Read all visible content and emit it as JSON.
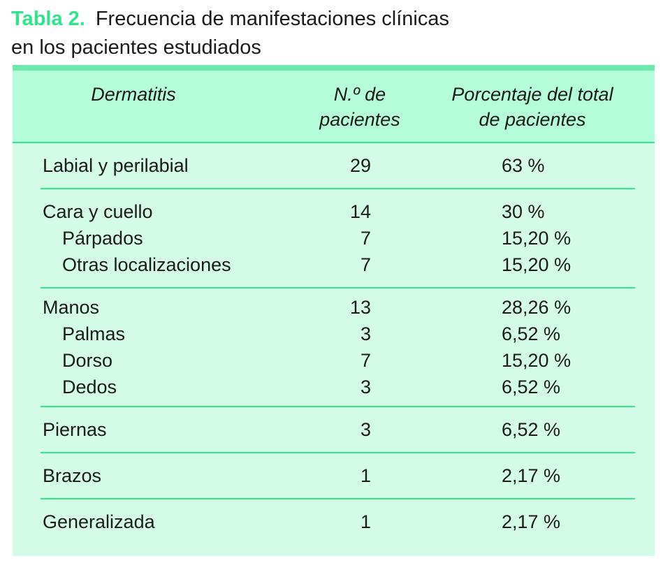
{
  "caption": {
    "label": "Tabla 2.",
    "line1": "Frecuencia de manifestaciones clínicas",
    "line2": "en los pacientes estudiados"
  },
  "colors": {
    "caption_green": "#2de68c",
    "top_bar_green": "#6de9aa",
    "header_bg": "#b5fcda",
    "body_bg": "#d4fbe8",
    "line_green": "#2ee88c",
    "text": "#1b1b1b"
  },
  "table": {
    "columns": [
      "Dermatitis",
      "N.º de pacientes",
      "Porcentaje del total de pacientes"
    ],
    "groups": [
      {
        "rows": [
          {
            "label": "Labial y perilabial",
            "indent": false,
            "n": "29",
            "pct": "63 %"
          }
        ]
      },
      {
        "rows": [
          {
            "label": "Cara y cuello",
            "indent": false,
            "n": "14",
            "pct": "30 %"
          },
          {
            "label": "Párpados",
            "indent": true,
            "n": "7",
            "pct": "15,20 %"
          },
          {
            "label": "Otras localizaciones",
            "indent": true,
            "n": "7",
            "pct": "15,20 %"
          }
        ]
      },
      {
        "rows": [
          {
            "label": "Manos",
            "indent": false,
            "n": "13",
            "pct": "28,26 %"
          },
          {
            "label": "Palmas",
            "indent": true,
            "n": "3",
            "pct": "6,52 %"
          },
          {
            "label": "Dorso",
            "indent": true,
            "n": "7",
            "pct": "15,20 %"
          },
          {
            "label": "Dedos",
            "indent": true,
            "n": "3",
            "pct": "6,52 %"
          }
        ]
      },
      {
        "rows": [
          {
            "label": "Piernas",
            "indent": false,
            "n": "3",
            "pct": "6,52 %"
          }
        ]
      },
      {
        "rows": [
          {
            "label": "Brazos",
            "indent": false,
            "n": "1",
            "pct": "2,17 %"
          }
        ]
      },
      {
        "rows": [
          {
            "label": "Generalizada",
            "indent": false,
            "n": "1",
            "pct": "2,17 %"
          }
        ]
      }
    ]
  },
  "chart_data": {
    "type": "table",
    "title": "Tabla 2. Frecuencia de manifestaciones clínicas en los pacientes estudiados",
    "columns": [
      "Dermatitis",
      "N.º de pacientes",
      "Porcentaje del total de pacientes"
    ],
    "rows": [
      [
        "Labial y perilabial",
        29,
        "63 %"
      ],
      [
        "Cara y cuello",
        14,
        "30 %"
      ],
      [
        "Párpados",
        7,
        "15,20 %"
      ],
      [
        "Otras localizaciones",
        7,
        "15,20 %"
      ],
      [
        "Manos",
        13,
        "28,26 %"
      ],
      [
        "Palmas",
        3,
        "6,52 %"
      ],
      [
        "Dorso",
        7,
        "15,20 %"
      ],
      [
        "Dedos",
        3,
        "6,52 %"
      ],
      [
        "Piernas",
        3,
        "6,52 %"
      ],
      [
        "Brazos",
        1,
        "2,17 %"
      ],
      [
        "Generalizada",
        1,
        "2,17 %"
      ]
    ]
  }
}
